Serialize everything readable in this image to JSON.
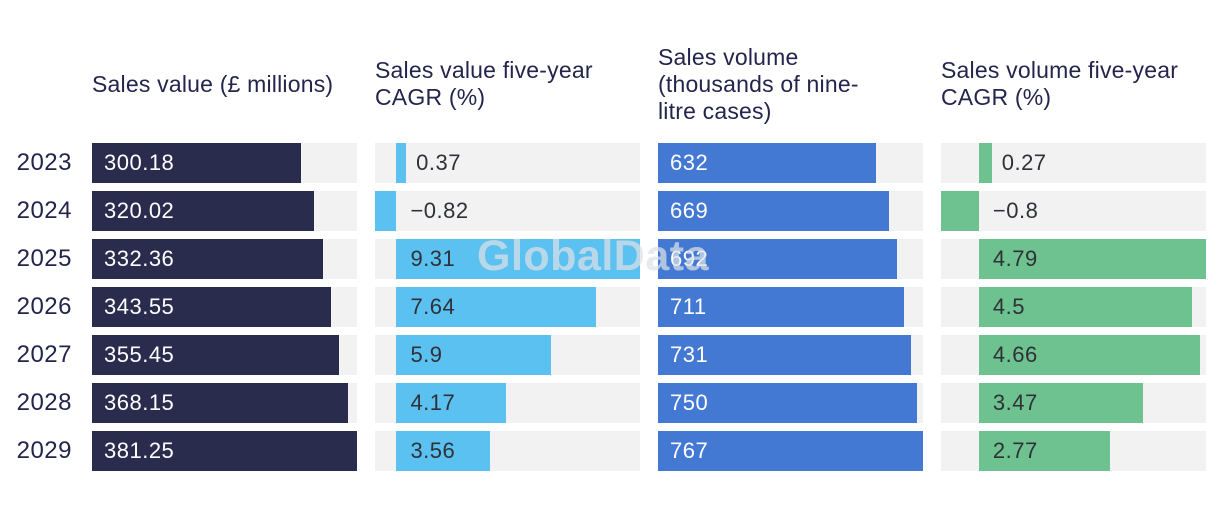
{
  "watermark": "GlobalData",
  "colors": {
    "track": "#F2F2F2",
    "sales_value_bar": "#2A2C4E",
    "sales_value_cagr_bar": "#5AC1F1",
    "sales_volume_bar": "#4379D3",
    "sales_volume_cagr_bar": "#6EC28F",
    "header_text": "#23254C",
    "light_value_text": "#FFFFFF",
    "dark_value_text": "#2F3138"
  },
  "chart_data": {
    "type": "bar",
    "orientation": "horizontal",
    "categories": [
      "2023",
      "2024",
      "2025",
      "2026",
      "2027",
      "2028",
      "2029"
    ],
    "columns": [
      {
        "key": "sales-value",
        "header": "Sales value (£ millions)",
        "scale": "zero-to-max",
        "bar_color": "#2A2C4E",
        "label_color": "#FFFFFF",
        "values": [
          300.18,
          320.02,
          332.36,
          343.55,
          355.45,
          368.15,
          381.25
        ],
        "labels": [
          "300.18",
          "320.02",
          "332.36",
          "343.55",
          "355.45",
          "368.15",
          "381.25"
        ]
      },
      {
        "key": "sales-value-cagr",
        "header": "Sales value five-year\nCAGR (%)",
        "scale": "diverging",
        "bar_color": "#5AC1F1",
        "label_color": "#2F3138",
        "values": [
          0.37,
          -0.82,
          9.31,
          7.64,
          5.9,
          4.17,
          3.56
        ],
        "labels": [
          "0.37",
          "−0.82",
          "9.31",
          "7.64",
          "5.9",
          "4.17",
          "3.56"
        ]
      },
      {
        "key": "sales-volume",
        "header": "Sales volume\n(thousands of nine-\nlitre cases)",
        "scale": "zero-to-max",
        "bar_color": "#4379D3",
        "label_color": "#FFFFFF",
        "values": [
          632,
          669,
          692,
          711,
          731,
          750,
          767
        ],
        "labels": [
          "632",
          "669",
          "692",
          "711",
          "731",
          "750",
          "767"
        ]
      },
      {
        "key": "sales-volume-cagr",
        "header": "Sales volume five-year\nCAGR (%)",
        "scale": "diverging",
        "bar_color": "#6EC28F",
        "label_color": "#2F3138",
        "values": [
          0.27,
          -0.8,
          4.79,
          4.5,
          4.66,
          3.47,
          2.77
        ],
        "labels": [
          "0.27",
          "−0.8",
          "4.79",
          "4.5",
          "4.66",
          "3.47",
          "2.77"
        ]
      }
    ]
  }
}
